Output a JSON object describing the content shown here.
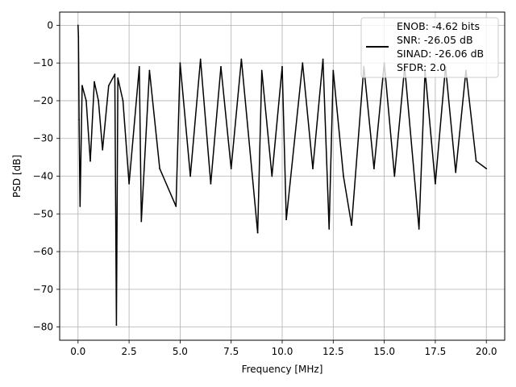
{
  "chart_data": {
    "type": "line",
    "title": "",
    "xlabel": "Frequency [MHz]",
    "ylabel": "PSD [dB]",
    "xlim": [
      -0.9,
      20.9
    ],
    "ylim": [
      -83.5,
      3.5
    ],
    "xticks": [
      0.0,
      2.5,
      5.0,
      7.5,
      10.0,
      12.5,
      15.0,
      17.5,
      20.0
    ],
    "xtick_labels": [
      "0.0",
      "2.5",
      "5.0",
      "7.5",
      "10.0",
      "12.5",
      "15.0",
      "17.5",
      "20.0"
    ],
    "yticks": [
      0,
      -10,
      -20,
      -30,
      -40,
      -50,
      -60,
      -70,
      -80
    ],
    "ytick_labels": [
      "0",
      "−10",
      "−20",
      "−30",
      "−40",
      "−50",
      "−60",
      "−70",
      "−80"
    ],
    "grid": true,
    "legend_position": "top-right",
    "series_color": "#000000",
    "legend": [
      "ENOB: -4.62 bits",
      "SNR: -26.05 dB",
      "SINAD: -26.06 dB",
      "SFDR: 2.0"
    ],
    "series": [
      {
        "x": [
          0.0,
          0.02,
          0.05,
          0.1,
          0.2,
          0.4,
          0.6,
          0.8,
          1.0,
          1.2,
          1.5,
          1.8,
          1.88,
          1.95,
          2.2,
          2.5,
          3.0,
          3.1,
          3.5,
          4.0,
          4.8,
          5.0,
          5.5,
          6.0,
          6.5,
          7.0,
          7.5,
          8.0,
          8.8,
          9.0,
          9.5,
          10.0,
          10.2,
          11.0,
          11.5,
          12.0,
          12.3,
          12.5,
          13.0,
          13.4,
          14.0,
          14.5,
          15.0,
          15.5,
          16.0,
          16.7,
          17.0,
          17.5,
          18.0,
          18.5,
          19.0,
          19.5,
          20.0
        ],
        "y": [
          0.0,
          -3.0,
          -25.0,
          -48.0,
          -16.0,
          -20.0,
          -36.0,
          -15.0,
          -20.0,
          -33.0,
          -16.0,
          -13.0,
          -79.5,
          -14.0,
          -20.0,
          -42.0,
          -11.0,
          -52.0,
          -12.0,
          -38.0,
          -48.0,
          -10.0,
          -40.0,
          -9.0,
          -42.0,
          -11.0,
          -38.0,
          -9.0,
          -55.0,
          -12.0,
          -40.0,
          -11.0,
          -51.5,
          -10.0,
          -38.0,
          -9.0,
          -54.0,
          -12.0,
          -40.0,
          -53.0,
          -11.0,
          -38.0,
          -10.0,
          -40.0,
          -11.0,
          -54.0,
          -12.0,
          -42.0,
          -11.0,
          -39.0,
          -12.0,
          -36.0,
          -38.0
        ]
      }
    ]
  }
}
